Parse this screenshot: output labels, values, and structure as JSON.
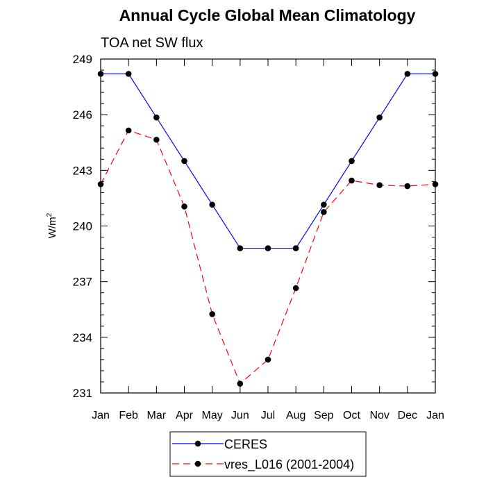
{
  "chart_data": {
    "type": "line",
    "title": "Annual Cycle Global Mean Climatology",
    "subtitle": "TOA net SW flux",
    "xlabel": "",
    "ylabel": "W/m",
    "ylabel_superscript": "2",
    "categories": [
      "Jan",
      "Feb",
      "Mar",
      "Apr",
      "May",
      "Jun",
      "Jul",
      "Aug",
      "Sep",
      "Oct",
      "Nov",
      "Dec",
      "Jan"
    ],
    "ylim": [
      231,
      249
    ],
    "yticks": [
      231,
      234,
      237,
      240,
      243,
      246,
      249
    ],
    "yticks_text": [
      "231",
      "234",
      "237",
      "240",
      "243",
      "246",
      "249"
    ],
    "series": [
      {
        "name": "CERES",
        "color": "#0000ff",
        "dash": "solid",
        "values": [
          248.2,
          248.2,
          245.85,
          243.5,
          241.15,
          238.8,
          238.8,
          238.8,
          241.15,
          243.5,
          245.85,
          248.2,
          248.2
        ]
      },
      {
        "name": "vres_L016 (2001-2004)",
        "color": "#ff0000",
        "dash": "dashed",
        "values": [
          242.25,
          245.15,
          244.65,
          241.05,
          235.25,
          231.5,
          232.8,
          236.65,
          240.75,
          242.45,
          242.2,
          242.15,
          242.25
        ]
      }
    ],
    "legend": {
      "position": "bottom",
      "entries": [
        "CERES",
        "vres_L016 (2001-2004)"
      ]
    },
    "grid": false
  }
}
